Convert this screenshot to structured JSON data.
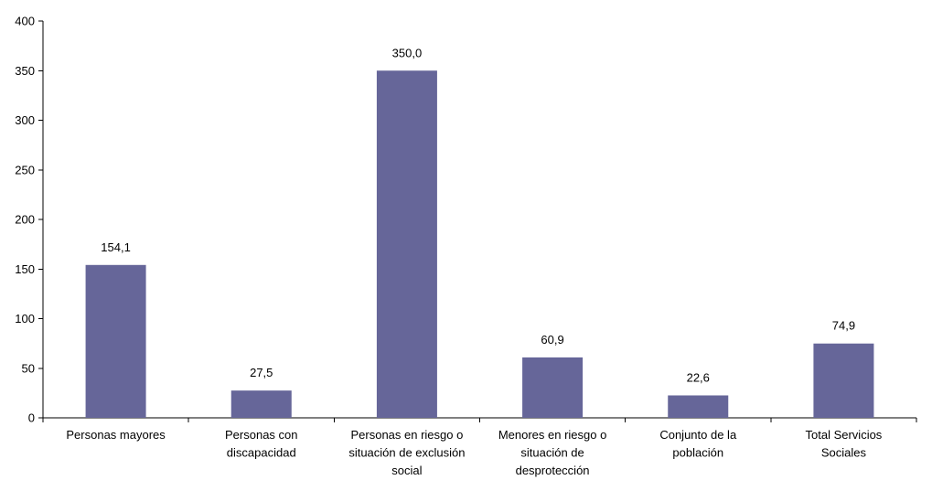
{
  "chart_data": {
    "type": "bar",
    "categories": [
      "Personas mayores",
      "Personas con discapacidad",
      "Personas en riesgo o situación de exclusión social",
      "Menores en riesgo o situación de desprotección",
      "Conjunto de la población",
      "Total Servicios Sociales"
    ],
    "category_lines": [
      [
        "Personas mayores"
      ],
      [
        "Personas con",
        "discapacidad"
      ],
      [
        "Personas en riesgo o",
        "situación de exclusión",
        "social"
      ],
      [
        "Menores en riesgo o",
        "situación de",
        "desprotección"
      ],
      [
        "Conjunto de la",
        "población"
      ],
      [
        "Total Servicios",
        "Sociales"
      ]
    ],
    "values": [
      154.1,
      27.5,
      350.0,
      60.9,
      22.6,
      74.9
    ],
    "value_labels": [
      "154,1",
      "27,5",
      "350,0",
      "60,9",
      "22,6",
      "74,9"
    ],
    "ylim": [
      0,
      400
    ],
    "yticks": [
      "0",
      "50",
      "100",
      "150",
      "200",
      "250",
      "300",
      "350",
      "400"
    ],
    "bar_color": "#666699",
    "grid": false,
    "legend": "none",
    "title": "",
    "xlabel": "",
    "ylabel": ""
  }
}
